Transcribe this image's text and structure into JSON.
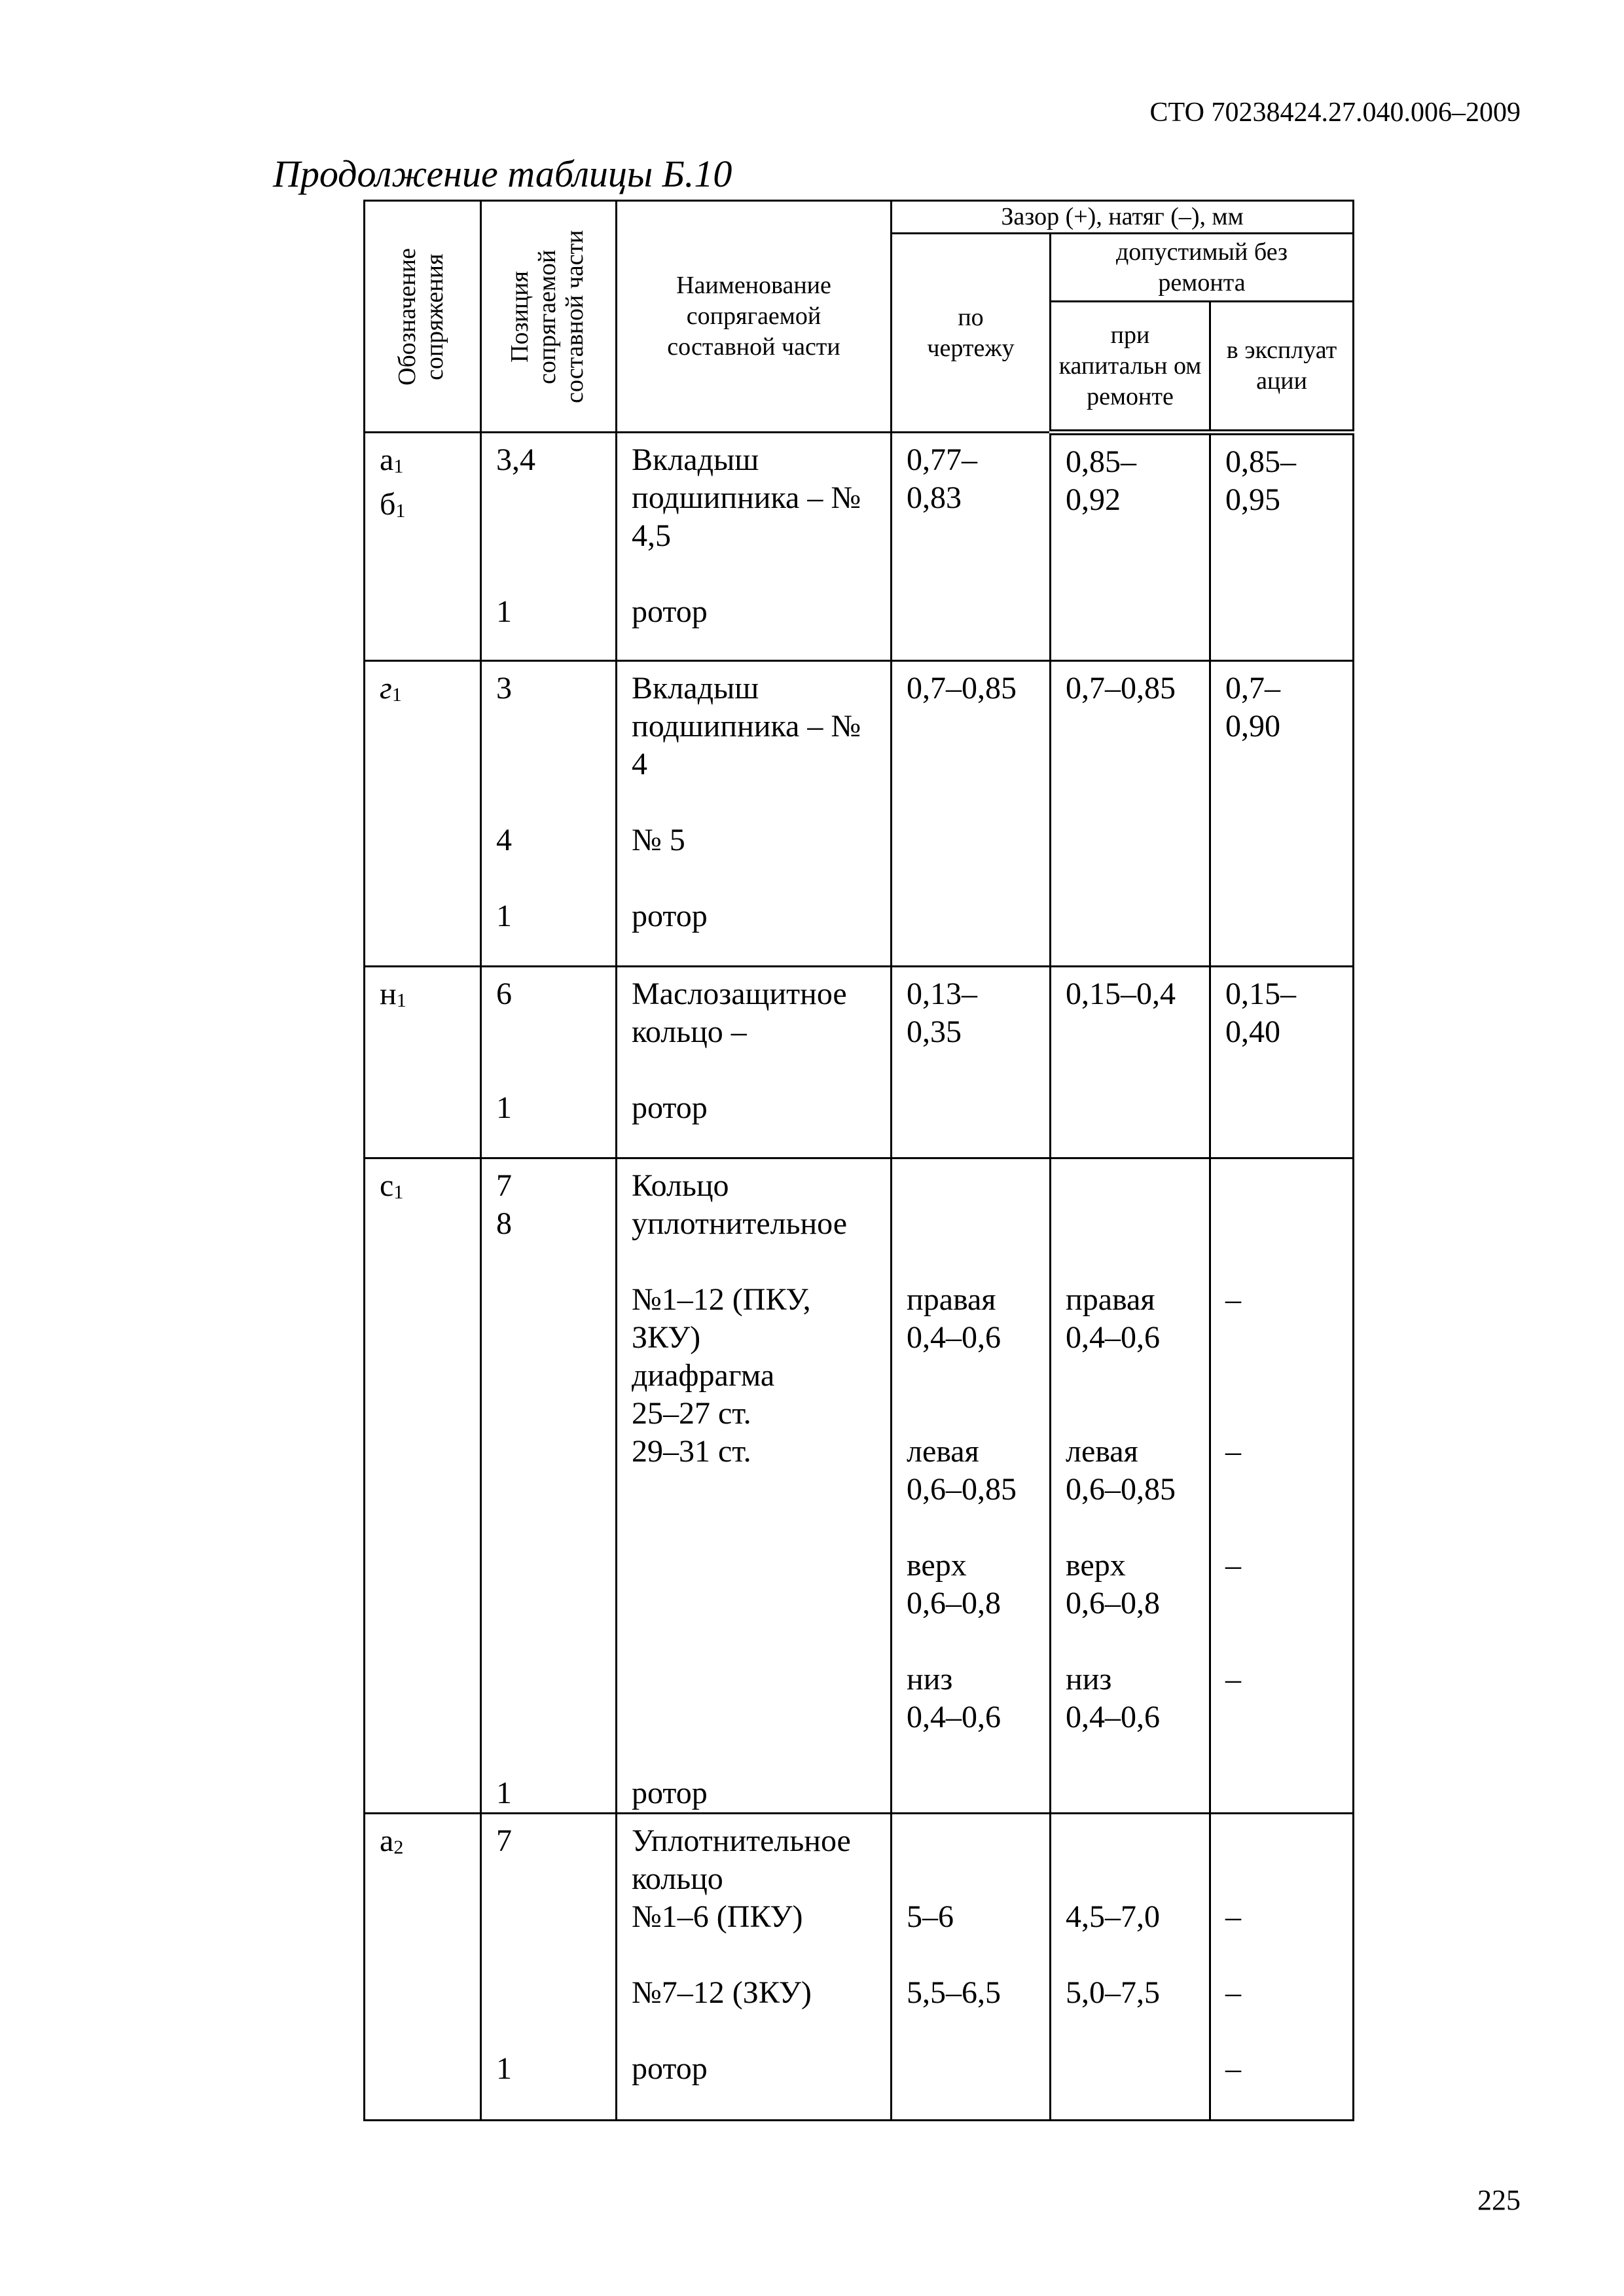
{
  "header": {
    "doc_code": "СТО 70238424.27.040.006–2009"
  },
  "title": "Продолжение таблицы Б.10",
  "table": {
    "headers": {
      "designation": "Обозначение сопряжения",
      "position": "Позиция сопрягаемой составной части",
      "name": "Наименование сопрягаемой составной части",
      "gap": "Зазор (+), натяг (–), мм",
      "by_drawing": "по чертежу",
      "allowed": "допустимый без ремонта",
      "capital": "при капитальн ом ремонте",
      "operation": "в эксплуат ации"
    },
    "rows": [
      {
        "des": "а",
        "des_sub": "1",
        "des2": "б",
        "des2_sub": "1",
        "pos": "3,4\n\n\n\n1",
        "name": "Вкладыш\nподшипника – №\n4,5\n\nротор",
        "draw": "0,77–\n0,83",
        "cap": "0,85–\n0,92",
        "op": "0,85–\n0,95"
      },
      {
        "des": "г",
        "des_sub": "1",
        "des2": "",
        "des2_sub": "",
        "pos": "3\n\n\n\n4\n\n1",
        "name": "Вкладыш\nподшипника – №\n4\n\n № 5\n\nротор",
        "draw": "0,7–0,85",
        "cap": "0,7–0,85",
        "op": "0,7–\n0,90"
      },
      {
        "des": "н",
        "des_sub": "1",
        "des2": "",
        "des2_sub": "",
        "pos": "6\n\n\n1",
        "name": "Маслозащитное\nкольцо –\n\nротор",
        "draw": "0,13–\n0,35",
        "cap": "0,15–0,4",
        "op": "0,15–\n0,40"
      },
      {
        "des": "с",
        "des_sub": "1",
        "des2": "",
        "des2_sub": "",
        "pos": "7\n8\n\n\n\n\n\n\n\n\n\n\n\n\n\n\n1",
        "name": "Кольцо\nуплотнительное\n\n№1–12 (ПКУ,\nЗКУ)\nдиафрагма\n25–27 ст.\n29–31 ст.\n\n\n\n\n\n\n\n\nротор",
        "draw": "\n\n\nправая\n0,4–0,6\n\n\nлевая\n0,6–0,85\n\nверх\n0,6–0,8\n\nниз\n0,4–0,6",
        "cap": "\n\n\nправая\n0,4–0,6\n\n\nлевая\n0,6–0,85\n\nверх\n0,6–0,8\n\nниз\n0,4–0,6",
        "op": "\n\n\n–\n\n\n\n–\n\n\n–\n\n\n–"
      },
      {
        "des": "а",
        "des_sub": "2",
        "des2": "",
        "des2_sub": "",
        "pos": "7\n\n\n\n\n\n1",
        "name": "Уплотнительное\nкольцо\n№1–6 (ПКУ)\n\n№7–12 (ЗКУ)\n\nротор",
        "draw": "\n\n5–6\n\n5,5–6,5",
        "cap": "\n\n4,5–7,0\n\n5,0–7,5",
        "op": "\n\n–\n\n–\n\n–"
      }
    ]
  },
  "footer": {
    "page_number": "225"
  }
}
